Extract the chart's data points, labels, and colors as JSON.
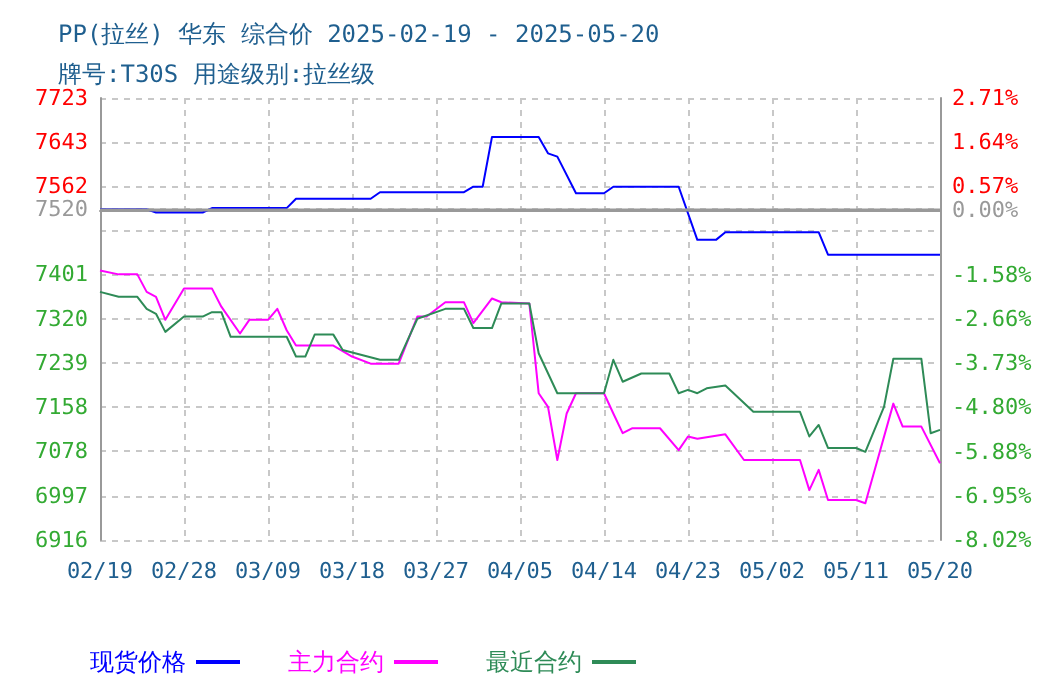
{
  "chart_data": {
    "type": "line",
    "title": "PP(拉丝) 华东 综合价 2025-02-19 - 2025-05-20",
    "subtitle": "牌号:T30S 用途级别:拉丝级",
    "series": [
      {
        "name": "现货价格",
        "color": "#0000ff",
        "x": [
          "2025-02-19",
          "2025-02-24",
          "2025-02-25",
          "2025-03-02",
          "2025-03-03",
          "2025-03-11",
          "2025-03-12",
          "2025-03-20",
          "2025-03-21",
          "2025-03-30",
          "2025-03-31",
          "2025-04-01",
          "2025-04-02",
          "2025-04-07",
          "2025-04-08",
          "2025-04-09",
          "2025-04-11",
          "2025-04-14",
          "2025-04-15",
          "2025-04-22",
          "2025-04-24",
          "2025-04-26",
          "2025-04-27",
          "2025-05-07",
          "2025-05-08",
          "2025-05-20"
        ],
        "values": [
          7520,
          7520,
          7514,
          7514,
          7522,
          7522,
          7539,
          7539,
          7551,
          7551,
          7561,
          7561,
          7652,
          7652,
          7622,
          7616,
          7549,
          7549,
          7561,
          7561,
          7464,
          7464,
          7478,
          7478,
          7437,
          7437
        ]
      },
      {
        "name": "主力合约",
        "color": "#ff00ff",
        "x": [
          "2025-02-19",
          "2025-02-21",
          "2025-02-23",
          "2025-02-24",
          "2025-02-25",
          "2025-02-26",
          "2025-02-28",
          "2025-03-03",
          "2025-03-04",
          "2025-03-06",
          "2025-03-07",
          "2025-03-09",
          "2025-03-10",
          "2025-03-11",
          "2025-03-12",
          "2025-03-16",
          "2025-03-18",
          "2025-03-20",
          "2025-03-23",
          "2025-03-25",
          "2025-03-26",
          "2025-03-28",
          "2025-03-30",
          "2025-03-31",
          "2025-04-02",
          "2025-04-03",
          "2025-04-06",
          "2025-04-07",
          "2025-04-08",
          "2025-04-09",
          "2025-04-10",
          "2025-04-11",
          "2025-04-14",
          "2025-04-15",
          "2025-04-16",
          "2025-04-17",
          "2025-04-20",
          "2025-04-22",
          "2025-04-23",
          "2025-04-24",
          "2025-04-27",
          "2025-04-29",
          "2025-05-05",
          "2025-05-06",
          "2025-05-07",
          "2025-05-08",
          "2025-05-11",
          "2025-05-12",
          "2025-05-15",
          "2025-05-16",
          "2025-05-18",
          "2025-05-20"
        ],
        "values": [
          7408,
          7401,
          7401,
          7369,
          7360,
          7318,
          7375,
          7375,
          7342,
          7293,
          7318,
          7318,
          7338,
          7299,
          7271,
          7271,
          7251,
          7238,
          7238,
          7324,
          7324,
          7350,
          7350,
          7312,
          7357,
          7350,
          7348,
          7184,
          7159,
          7062,
          7147,
          7184,
          7184,
          7147,
          7111,
          7120,
          7120,
          7080,
          7105,
          7101,
          7109,
          7062,
          7062,
          7007,
          7044,
          6989,
          6989,
          6983,
          7165,
          7123,
          7123,
          7056
        ]
      },
      {
        "name": "最近合约",
        "color": "#2e8b57",
        "x": [
          "2025-02-19",
          "2025-02-21",
          "2025-02-23",
          "2025-02-24",
          "2025-02-25",
          "2025-02-26",
          "2025-02-28",
          "2025-03-02",
          "2025-03-03",
          "2025-03-04",
          "2025-03-05",
          "2025-03-11",
          "2025-03-12",
          "2025-03-13",
          "2025-03-14",
          "2025-03-16",
          "2025-03-17",
          "2025-03-21",
          "2025-03-23",
          "2025-03-25",
          "2025-03-28",
          "2025-03-30",
          "2025-03-31",
          "2025-04-02",
          "2025-04-03",
          "2025-04-06",
          "2025-04-07",
          "2025-04-09",
          "2025-04-14",
          "2025-04-15",
          "2025-04-16",
          "2025-04-18",
          "2025-04-21",
          "2025-04-22",
          "2025-04-23",
          "2025-04-24",
          "2025-04-25",
          "2025-04-27",
          "2025-04-30",
          "2025-05-05",
          "2025-05-06",
          "2025-05-07",
          "2025-05-08",
          "2025-05-11",
          "2025-05-12",
          "2025-05-14",
          "2025-05-15",
          "2025-05-18",
          "2025-05-19",
          "2025-05-20"
        ],
        "values": [
          7369,
          7360,
          7360,
          7338,
          7329,
          7296,
          7324,
          7324,
          7332,
          7332,
          7287,
          7287,
          7251,
          7251,
          7291,
          7291,
          7263,
          7245,
          7245,
          7320,
          7338,
          7338,
          7303,
          7303,
          7348,
          7348,
          7257,
          7184,
          7184,
          7245,
          7205,
          7220,
          7220,
          7184,
          7190,
          7184,
          7193,
          7198,
          7150,
          7150,
          7105,
          7126,
          7084,
          7084,
          7077,
          7159,
          7247,
          7247,
          7111,
          7117
        ]
      }
    ],
    "xlim": [
      "2025-02-19",
      "2025-05-20"
    ],
    "xticks": [
      {
        "value": "2025-02-19",
        "label": "02/19"
      },
      {
        "value": "2025-02-28",
        "label": "02/28"
      },
      {
        "value": "2025-03-09",
        "label": "03/09"
      },
      {
        "value": "2025-03-18",
        "label": "03/18"
      },
      {
        "value": "2025-03-27",
        "label": "03/27"
      },
      {
        "value": "2025-04-05",
        "label": "04/05"
      },
      {
        "value": "2025-04-14",
        "label": "04/14"
      },
      {
        "value": "2025-04-23",
        "label": "04/23"
      },
      {
        "value": "2025-05-02",
        "label": "05/02"
      },
      {
        "value": "2025-05-11",
        "label": "05/11"
      },
      {
        "value": "2025-05-20",
        "label": "05/20"
      }
    ],
    "ylim": [
      6916,
      7723
    ],
    "yticks": [
      6916,
      6997,
      7078,
      7158,
      7239,
      7320,
      7401,
      {
        "value": 7481,
        "label": null
      },
      7520,
      7562,
      7643,
      7723
    ],
    "y2lim": [
      -8.02,
      2.71
    ],
    "y2ticks": [
      {
        "value": -8.02,
        "label": "-8.02%"
      },
      {
        "value": -6.95,
        "label": "-6.95%"
      },
      {
        "value": -5.88,
        "label": "-5.88%"
      },
      {
        "value": -4.8,
        "label": "-4.80%"
      },
      {
        "value": -3.73,
        "label": "-3.73%"
      },
      {
        "value": -2.66,
        "label": "-2.66%"
      },
      {
        "value": -1.58,
        "label": "-1.58%"
      },
      {
        "value": 0,
        "label": "0.00%"
      },
      {
        "value": 0.57,
        "label": "0.57%"
      },
      {
        "value": 1.64,
        "label": "1.64%"
      },
      {
        "value": 2.71,
        "label": "2.71%"
      }
    ],
    "ref_lines": [
      {
        "axis": "y",
        "value": 7520,
        "color": "#999999"
      }
    ],
    "grid": true,
    "legend": "bottom",
    "marker": "none",
    "line_style": "solid"
  }
}
